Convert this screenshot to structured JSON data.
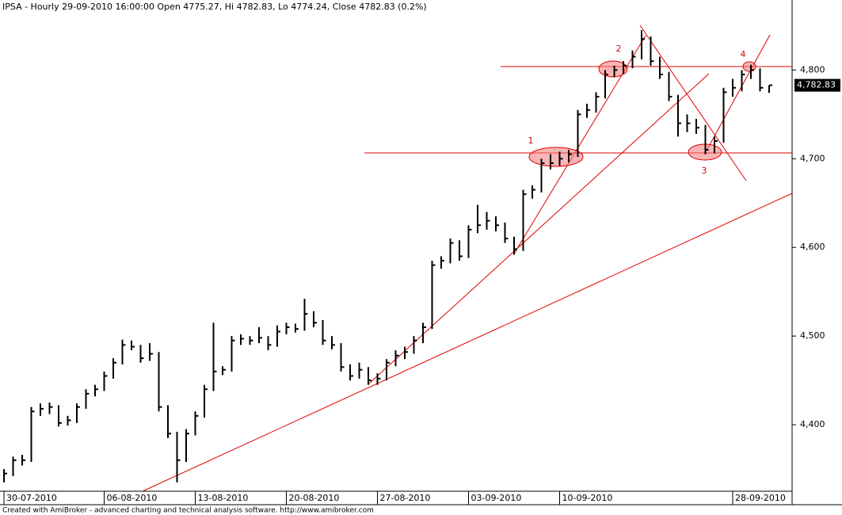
{
  "chart_data": {
    "type": "ohlc",
    "title": "IPSA - Hourly 29-09-2010 16:00:00 Open 4775.27, Hi 4782.83, Lo 4774.24, Close 4782.83 (0.2%)",
    "footer": "Created with AmiBroker - advanced charting and technical analysis software. http://www.amibroker.com",
    "last_price_label": "4,782.83",
    "annotations": [
      "1",
      "2",
      "3",
      "4"
    ],
    "color": "#000000",
    "categories": [
      "30-07-2010",
      null,
      null,
      null,
      null,
      null,
      null,
      null,
      null,
      null,
      null,
      "06-08-2010",
      null,
      null,
      null,
      null,
      null,
      null,
      null,
      null,
      null,
      "13-08-2010",
      null,
      null,
      null,
      null,
      null,
      null,
      null,
      null,
      null,
      "20-08-2010",
      null,
      null,
      null,
      null,
      null,
      null,
      null,
      null,
      null,
      "27-08-2010",
      null,
      null,
      null,
      null,
      null,
      null,
      null,
      null,
      null,
      "03-09-2010",
      null,
      null,
      null,
      null,
      null,
      null,
      null,
      null,
      null,
      "10-09-2010",
      null,
      null,
      null,
      null,
      null,
      null,
      null,
      null,
      null,
      null,
      null,
      null,
      null,
      null,
      null,
      null,
      null,
      null,
      "28-09-2010",
      null,
      null,
      null,
      null
    ],
    "high": [
      4350,
      4364,
      4366,
      4420,
      4424,
      4425,
      4422,
      4410,
      4424,
      4440,
      4445,
      4460,
      4475,
      4496,
      4495,
      4490,
      4492,
      4482,
      4422,
      4392,
      4395,
      4415,
      4445,
      4515,
      4466,
      4500,
      4502,
      4500,
      4510,
      4500,
      4512,
      4515,
      4514,
      4542,
      4528,
      4518,
      4500,
      4492,
      4468,
      4470,
      4465,
      4458,
      4474,
      4484,
      4488,
      4500,
      4515,
      4585,
      4590,
      4610,
      4608,
      4625,
      4648,
      4640,
      4635,
      4628,
      4612,
      4665,
      4670,
      4700,
      4705,
      4708,
      4710,
      4755,
      4762,
      4775,
      4800,
      4805,
      4810,
      4822,
      4845,
      4838,
      4815,
      4798,
      4772,
      4750,
      4745,
      4738,
      4725,
      4780,
      4790,
      4800,
      4806,
      4802,
      4782.83
    ],
    "low": [
      4335,
      4342,
      4354,
      4358,
      4410,
      4412,
      4398,
      4399,
      4402,
      4418,
      4432,
      4438,
      4452,
      4468,
      4484,
      4470,
      4472,
      4415,
      4385,
      4335,
      4358,
      4388,
      4408,
      4438,
      4456,
      4460,
      4490,
      4490,
      4492,
      4484,
      4488,
      4502,
      4504,
      4506,
      4510,
      4490,
      4485,
      4460,
      4450,
      4452,
      4445,
      4445,
      4450,
      4466,
      4474,
      4480,
      4492,
      4508,
      4576,
      4582,
      4585,
      4588,
      4616,
      4620,
      4618,
      4605,
      4592,
      4596,
      4655,
      4662,
      4688,
      4692,
      4696,
      4702,
      4746,
      4752,
      4768,
      4792,
      4796,
      4802,
      4812,
      4805,
      4790,
      4765,
      4725,
      4730,
      4728,
      4705,
      4706,
      4718,
      4770,
      4776,
      4790,
      4776,
      4774.24
    ],
    "close": [
      4345,
      4360,
      4360,
      4415,
      4418,
      4420,
      4402,
      4405,
      4420,
      4435,
      4440,
      4455,
      4470,
      4490,
      4488,
      4475,
      4480,
      4420,
      4390,
      4360,
      4390,
      4410,
      4440,
      4460,
      4462,
      4495,
      4497,
      4495,
      4498,
      4490,
      4505,
      4510,
      4508,
      4525,
      4515,
      4495,
      4490,
      4465,
      4455,
      4462,
      4450,
      4452,
      4470,
      4478,
      4482,
      4495,
      4510,
      4580,
      4585,
      4605,
      4590,
      4620,
      4625,
      4630,
      4625,
      4610,
      4598,
      4660,
      4665,
      4695,
      4695,
      4700,
      4705,
      4750,
      4755,
      4770,
      4795,
      4800,
      4805,
      4815,
      4835,
      4810,
      4795,
      4770,
      4740,
      4740,
      4735,
      4710,
      4720,
      4775,
      4780,
      4795,
      4800,
      4780,
      4782.83
    ],
    "ylim": [
      4325,
      4879
    ],
    "yticks": [
      {
        "value": 4400,
        "label": "4,400"
      },
      {
        "value": 4500,
        "label": "4,500"
      },
      {
        "value": 4600,
        "label": "4,600"
      },
      {
        "value": 4700,
        "label": "4,700"
      },
      {
        "value": 4800,
        "label": "4,800"
      }
    ]
  }
}
